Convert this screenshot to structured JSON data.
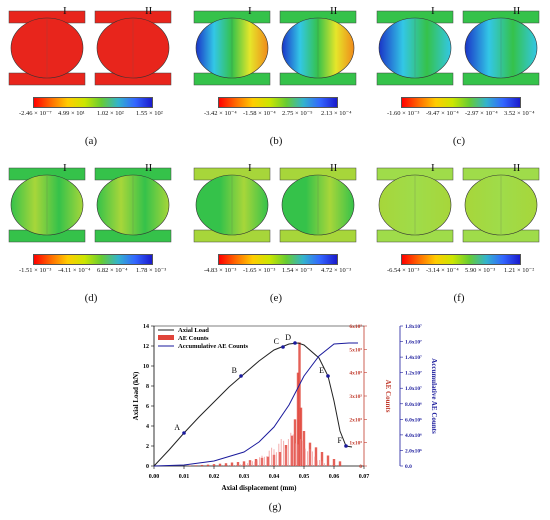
{
  "panels": [
    {
      "tag": "(a)",
      "labelI": "I",
      "labelII": "II",
      "ticks": [
        "-2.46 × 10⁻⁷",
        "4.99 × 10¹",
        "1.02 × 10²",
        "1.55 × 10²"
      ]
    },
    {
      "tag": "(b)",
      "labelI": "I",
      "labelII": "II",
      "ticks": [
        "-3.42 × 10⁻⁴",
        "-1.58 × 10⁻⁴",
        "2.75 × 10⁻⁵",
        "2.13 × 10⁻⁴"
      ]
    },
    {
      "tag": "(c)",
      "labelI": "I",
      "labelII": "II",
      "ticks": [
        "-1.60 × 10⁻³",
        "-9.47 × 10⁻⁴",
        "-2.97 × 10⁻⁴",
        "3.52 × 10⁻⁴"
      ]
    },
    {
      "tag": "(d)",
      "labelI": "I",
      "labelII": "II",
      "ticks": [
        "-1.51 × 10⁻³",
        "-4.11 × 10⁻⁴",
        "6.82 × 10⁻⁴",
        "1.78 × 10⁻³"
      ]
    },
    {
      "tag": "(e)",
      "labelI": "I",
      "labelII": "II",
      "ticks": [
        "-4.83 × 10⁻³",
        "-1.65 × 10⁻³",
        "1.54 × 10⁻³",
        "4.72 × 10⁻³"
      ]
    },
    {
      "tag": "(f)",
      "labelI": "I",
      "labelII": "II",
      "ticks": [
        "-6.54 × 10⁻³",
        "-3.14 × 10⁻⁴",
        "5.90 × 10⁻³",
        "1.21 × 10⁻²"
      ]
    }
  ],
  "palette": {
    "red": "#e8251c",
    "orange": "#f08a1a",
    "yellow": "#e6e62a",
    "green": "#35c24a",
    "cyan": "#33c7e6",
    "blue": "#1a34c8",
    "lime": "#a7d63a",
    "paleGreen": "#9fdc4a"
  },
  "chart_data": {
    "type": "line",
    "tag": "(g)",
    "xlabel": "Axial displacement (mm)",
    "ylabel": "Axial Load (kN)",
    "y2label": "AE Counts",
    "y3label": "Accumulative AE Counts",
    "xlim": [
      0,
      0.07
    ],
    "xticks": [
      "0.00",
      "0.01",
      "0.02",
      "0.03",
      "0.04",
      "0.05",
      "0.06",
      "0.07"
    ],
    "ylim": [
      0,
      14
    ],
    "yticks": [
      "0",
      "2",
      "4",
      "6",
      "8",
      "10",
      "12",
      "14"
    ],
    "y2ticks": [
      "0",
      "1x10⁵",
      "2x10⁵",
      "3x10⁵",
      "4x10⁵",
      "5x10⁵",
      "6x10⁵"
    ],
    "y3ticks": [
      "0.0",
      "2.0x10⁶",
      "4.0x10⁶",
      "6.0x10⁶",
      "8.0x10⁶",
      "1.0x10⁷",
      "1.2x10⁷",
      "1.4x10⁷",
      "1.6x10⁷",
      "1.8x10⁷"
    ],
    "legend": [
      "Axial Load",
      "AE Counts",
      "Accumulative AE Counts"
    ],
    "series": [
      {
        "name": "Axial Load",
        "color": "#222222",
        "x": [
          0,
          0.005,
          0.01,
          0.015,
          0.02,
          0.025,
          0.03,
          0.035,
          0.04,
          0.045,
          0.048,
          0.05,
          0.055,
          0.058,
          0.06,
          0.062,
          0.064,
          0.066
        ],
        "y": [
          0,
          1.6,
          3.3,
          4.9,
          6.4,
          7.9,
          9.2,
          10.5,
          11.6,
          12.2,
          12.3,
          12.1,
          10.8,
          9.0,
          6.5,
          3.5,
          2.0,
          1.9
        ]
      },
      {
        "name": "Accumulative AE Counts",
        "color": "#1a1a9c",
        "x": [
          0,
          0.01,
          0.02,
          0.03,
          0.035,
          0.04,
          0.045,
          0.05,
          0.055,
          0.06,
          0.065,
          0.068
        ],
        "y": [
          0,
          0.1,
          0.5,
          1.4,
          2.4,
          3.9,
          6.1,
          9.0,
          11.0,
          12.2,
          12.3,
          12.3
        ]
      }
    ],
    "ae_counts_y2": [
      [
        0.012,
        2000
      ],
      [
        0.014,
        3000
      ],
      [
        0.016,
        4500
      ],
      [
        0.018,
        6000
      ],
      [
        0.02,
        8000
      ],
      [
        0.022,
        10000
      ],
      [
        0.024,
        12000
      ],
      [
        0.026,
        15000
      ],
      [
        0.028,
        17000
      ],
      [
        0.03,
        20000
      ],
      [
        0.032,
        25000
      ],
      [
        0.034,
        30000
      ],
      [
        0.036,
        35000
      ],
      [
        0.038,
        40000
      ],
      [
        0.04,
        48000
      ],
      [
        0.042,
        60000
      ],
      [
        0.044,
        90000
      ],
      [
        0.046,
        130000
      ],
      [
        0.047,
        200000
      ],
      [
        0.048,
        400000
      ],
      [
        0.0485,
        530000
      ],
      [
        0.049,
        250000
      ],
      [
        0.05,
        150000
      ],
      [
        0.052,
        100000
      ],
      [
        0.054,
        80000
      ],
      [
        0.056,
        60000
      ],
      [
        0.058,
        45000
      ],
      [
        0.06,
        30000
      ],
      [
        0.062,
        20000
      ]
    ],
    "points": [
      {
        "label": "A",
        "x": 0.01,
        "y": 3.3
      },
      {
        "label": "B",
        "x": 0.029,
        "y": 9.0
      },
      {
        "label": "C",
        "x": 0.043,
        "y": 11.9
      },
      {
        "label": "D",
        "x": 0.047,
        "y": 12.3
      },
      {
        "label": "E",
        "x": 0.058,
        "y": 9.0
      },
      {
        "label": "F",
        "x": 0.064,
        "y": 2.0
      }
    ]
  }
}
